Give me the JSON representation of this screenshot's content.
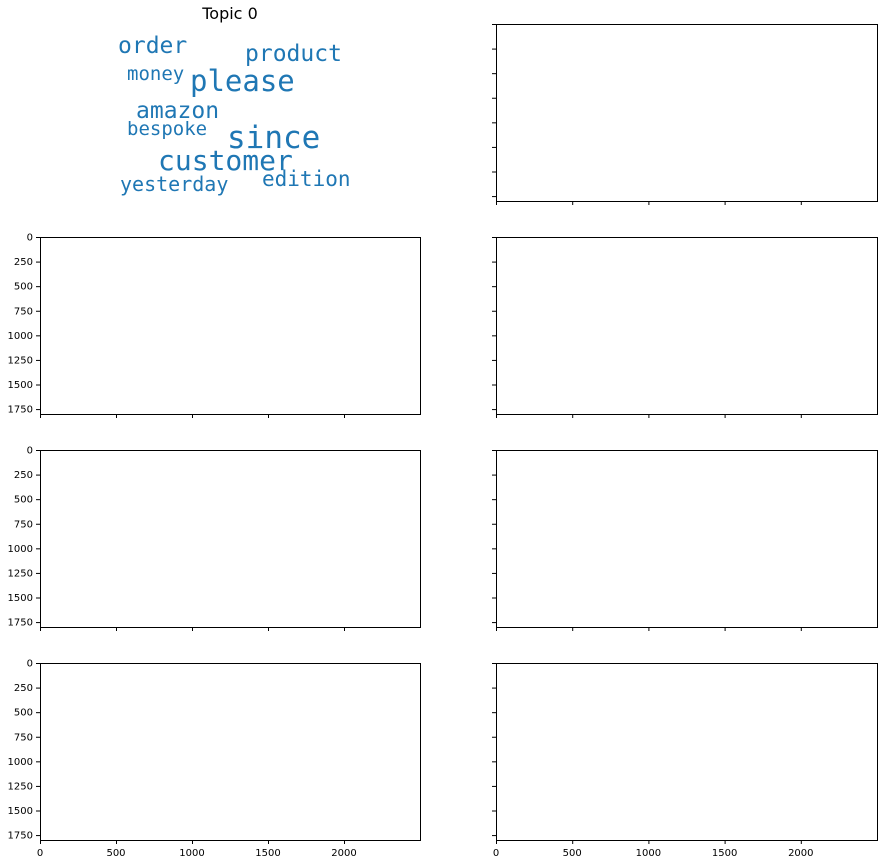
{
  "chart_data": {
    "type": "wordcloud-grid",
    "grid": {
      "rows": 4,
      "cols": 2
    },
    "shared_axes": {
      "x_ticks": [
        0,
        500,
        1000,
        1500,
        2000
      ],
      "y_ticks": [
        0,
        250,
        500,
        750,
        1000,
        1250,
        1500,
        1750
      ],
      "xlim": [
        0,
        2500
      ],
      "ylim": [
        1800,
        0
      ]
    },
    "word_color": "#1f77b4",
    "panels": [
      {
        "title": "Topic 0",
        "axis_off": true,
        "words": [
          {
            "text": "order",
            "weight": 0.62
          },
          {
            "text": "product",
            "weight": 0.62
          },
          {
            "text": "money",
            "weight": 0.52
          },
          {
            "text": "please",
            "weight": 0.82
          },
          {
            "text": "amazon",
            "weight": 0.64
          },
          {
            "text": "bespoke",
            "weight": 0.55
          },
          {
            "text": "since",
            "weight": 0.95
          },
          {
            "text": "customer",
            "weight": 0.86
          },
          {
            "text": "yesterday",
            "weight": 0.55
          },
          {
            "text": "edition",
            "weight": 0.58
          }
        ]
      },
      {
        "title": "",
        "axis_off": false,
        "words": []
      },
      {
        "title": "",
        "axis_off": false,
        "words": []
      },
      {
        "title": "",
        "axis_off": false,
        "words": []
      },
      {
        "title": "",
        "axis_off": false,
        "words": []
      },
      {
        "title": "",
        "axis_off": false,
        "words": []
      },
      {
        "title": "",
        "axis_off": false,
        "words": []
      },
      {
        "title": "",
        "axis_off": false,
        "words": []
      }
    ]
  }
}
